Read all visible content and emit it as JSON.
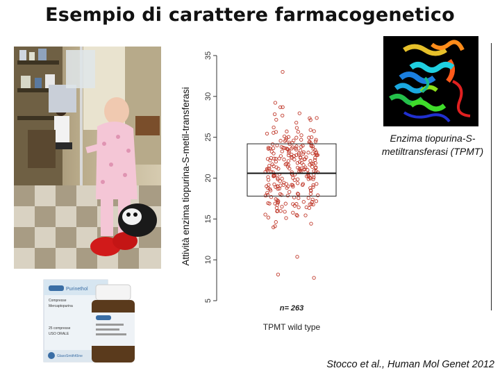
{
  "slide": {
    "title": "Esempio di carattere farmacogenetico",
    "citation": "Stocco et al., Human Mol Genet 2012"
  },
  "figure": {
    "caption": "Enzima tiopurina-S-metiltransferasi (TPMT)",
    "medicine_brand": "Purinethol",
    "medicine_text_1": "Compresse",
    "medicine_text_2": "Mercaptopurina",
    "medicine_text_3": "25 compresse",
    "medicine_text_4": "USO ORALE",
    "medicine_maker": "GlaxoSmithKline"
  },
  "chart_data": {
    "type": "scatter",
    "ylabel": "Attività enzima tiopurina-S-metil-transferasi",
    "xlabel": "TPMT wild type",
    "n_label": "n= 263",
    "ylim": [
      5,
      35
    ],
    "yticks": [
      "5",
      "10",
      "15",
      "20",
      "25",
      "30",
      "35"
    ],
    "box": {
      "q1": 17.8,
      "median": 20.6,
      "q3": 24.2
    },
    "point_color": "#c0392b",
    "point_count": 263
  },
  "colors": {
    "title": "#111111",
    "points": "#c0392b",
    "pajama": "#f4c6d6",
    "protein_bg": "#000000"
  }
}
